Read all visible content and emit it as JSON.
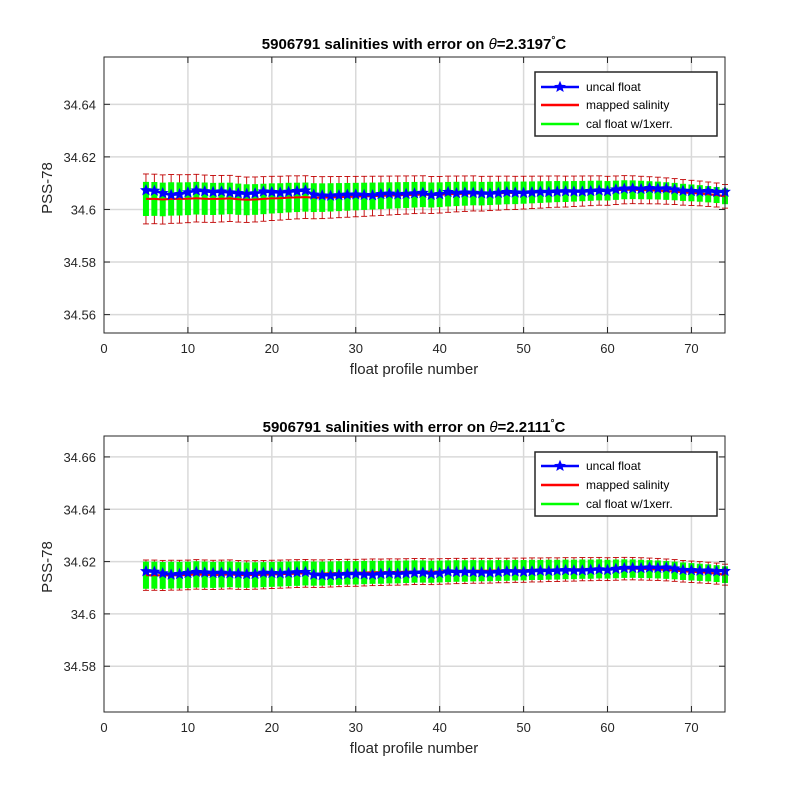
{
  "colors": {
    "uncal": "#0000ff",
    "mapped": "#ff0000",
    "errorbar": "#c00000",
    "cal": "#00ff00",
    "grid": "#d9d9d9",
    "axes": "#262626"
  },
  "chart_data": [
    {
      "type": "line",
      "title_prefix": "5906791 salinities with error on ",
      "theta_symbol": "θ",
      "title_value": "=2.3197",
      "degree_symbol": "°",
      "title_unit": "C",
      "xlabel": "float profile number",
      "ylabel": "PSS-78",
      "xlim": [
        0,
        74
      ],
      "ylim": [
        34.553,
        34.658
      ],
      "xticks": [
        0,
        10,
        20,
        30,
        40,
        50,
        60,
        70
      ],
      "yticks": [
        34.56,
        34.58,
        34.6,
        34.62,
        34.64
      ],
      "ytick_labels": [
        "34.56",
        "34.58",
        "34.6",
        "34.62",
        "34.64"
      ],
      "grid": true,
      "legend_position": "top-right",
      "x_start": 5,
      "x_end": 74,
      "series": [
        {
          "name": "uncal float",
          "values": [
            34.6073,
            34.6071,
            34.6062,
            34.6055,
            34.6058,
            34.6065,
            34.6072,
            34.6069,
            34.6066,
            34.6068,
            34.6064,
            34.6062,
            34.6059,
            34.6061,
            34.6068,
            34.6066,
            34.6064,
            34.6067,
            34.607,
            34.6072,
            34.6056,
            34.6053,
            34.6052,
            34.6054,
            34.6056,
            34.6057,
            34.6055,
            34.6054,
            34.6058,
            34.606,
            34.6057,
            34.6059,
            34.6061,
            34.6063,
            34.6055,
            34.6058,
            34.6066,
            34.6062,
            34.6064,
            34.6063,
            34.6061,
            34.606,
            34.6063,
            34.6066,
            34.6064,
            34.6063,
            34.6065,
            34.6067,
            34.6066,
            34.6068,
            34.6069,
            34.6068,
            34.6068,
            34.607,
            34.6072,
            34.607,
            34.6076,
            34.6079,
            34.608,
            34.6078,
            34.6081,
            34.6079,
            34.608,
            34.6076,
            34.6071,
            34.607,
            34.6068,
            34.607,
            34.6066,
            34.6067
          ]
        },
        {
          "name": "mapped salinity",
          "values": [
            34.604,
            34.604,
            34.6038,
            34.604,
            34.604,
            34.6041,
            34.6043,
            34.6041,
            34.604,
            34.6041,
            34.6042,
            34.6039,
            34.6037,
            34.6038,
            34.604,
            34.6042,
            34.6043,
            34.6045,
            34.6046,
            34.6047,
            34.6045,
            34.6045,
            34.6046,
            34.6047,
            34.6048,
            34.6049,
            34.605,
            34.6051,
            34.6052,
            34.6053,
            34.6054,
            34.6055,
            34.6056,
            34.6057,
            34.6055,
            34.6056,
            34.6058,
            34.6059,
            34.606,
            34.6061,
            34.606,
            34.6061,
            34.6062,
            34.6063,
            34.6063,
            34.6064,
            34.6065,
            34.6066,
            34.6067,
            34.6068,
            34.6068,
            34.6069,
            34.607,
            34.6071,
            34.6072,
            34.6071,
            34.6073,
            34.6075,
            34.6075,
            34.6074,
            34.6073,
            34.6072,
            34.607,
            34.6068,
            34.6065,
            34.6063,
            34.6061,
            34.6058,
            34.6055,
            34.605
          ]
        },
        {
          "name": "cal float w/1xerr.",
          "values": [
            34.604,
            34.604,
            34.6038,
            34.604,
            34.604,
            34.6041,
            34.6043,
            34.6041,
            34.604,
            34.6041,
            34.6042,
            34.6039,
            34.6037,
            34.6038,
            34.604,
            34.6042,
            34.6043,
            34.6045,
            34.6046,
            34.6047,
            34.6045,
            34.6045,
            34.6046,
            34.6047,
            34.6048,
            34.6049,
            34.605,
            34.6051,
            34.6052,
            34.6053,
            34.6054,
            34.6055,
            34.6056,
            34.6057,
            34.6055,
            34.6056,
            34.6058,
            34.6059,
            34.606,
            34.6061,
            34.606,
            34.6061,
            34.6062,
            34.6063,
            34.6063,
            34.6064,
            34.6065,
            34.6066,
            34.6067,
            34.6068,
            34.6068,
            34.6069,
            34.607,
            34.6071,
            34.6072,
            34.6071,
            34.6073,
            34.6075,
            34.6075,
            34.6074,
            34.6073,
            34.6072,
            34.607,
            34.6068,
            34.6065,
            34.6063,
            34.6061,
            34.6058,
            34.6055,
            34.605
          ]
        }
      ],
      "mapped_error": {
        "first": 0.0095,
        "last": 0.0045
      },
      "cal_error": {
        "first": 0.0065,
        "last": 0.003
      }
    },
    {
      "type": "line",
      "title_prefix": "5906791 salinities with error on ",
      "theta_symbol": "θ",
      "title_value": "=2.2111",
      "degree_symbol": "°",
      "title_unit": "C",
      "xlabel": "float profile number",
      "ylabel": "PSS-78",
      "xlim": [
        0,
        74
      ],
      "ylim": [
        34.5625,
        34.668
      ],
      "xticks": [
        0,
        10,
        20,
        30,
        40,
        50,
        60,
        70
      ],
      "yticks": [
        34.58,
        34.6,
        34.62,
        34.64,
        34.66
      ],
      "ytick_labels": [
        "34.58",
        "34.6",
        "34.62",
        "34.64",
        "34.66"
      ],
      "grid": true,
      "legend_position": "top-right",
      "x_start": 5,
      "x_end": 74,
      "series": [
        {
          "name": "uncal float",
          "values": [
            34.6163,
            34.6161,
            34.6155,
            34.615,
            34.6152,
            34.6156,
            34.616,
            34.6158,
            34.6156,
            34.6157,
            34.6155,
            34.6154,
            34.6152,
            34.6153,
            34.6157,
            34.6156,
            34.6155,
            34.6157,
            34.6159,
            34.616,
            34.615,
            34.6148,
            34.6148,
            34.615,
            34.6152,
            34.6153,
            34.6151,
            34.615,
            34.6153,
            34.6155,
            34.6153,
            34.6155,
            34.6157,
            34.6158,
            34.6153,
            34.6156,
            34.6162,
            34.616,
            34.6161,
            34.616,
            34.6159,
            34.6158,
            34.616,
            34.6163,
            34.6162,
            34.6161,
            34.6163,
            34.6165,
            34.6164,
            34.6166,
            34.6167,
            34.6166,
            34.6166,
            34.6168,
            34.617,
            34.6168,
            34.6172,
            34.6175,
            34.6176,
            34.6175,
            34.6177,
            34.6176,
            34.6177,
            34.6173,
            34.6168,
            34.6167,
            34.6165,
            34.6166,
            34.6163,
            34.6164
          ]
        },
        {
          "name": "mapped salinity",
          "values": [
            34.6148,
            34.6148,
            34.6147,
            34.6148,
            34.6148,
            34.6149,
            34.6151,
            34.615,
            34.6149,
            34.615,
            34.6151,
            34.6149,
            34.6148,
            34.6149,
            34.615,
            34.6151,
            34.6152,
            34.6153,
            34.6154,
            34.6155,
            34.6154,
            34.6154,
            34.6155,
            34.6156,
            34.6157,
            34.6157,
            34.6158,
            34.6159,
            34.6159,
            34.616,
            34.616,
            34.6161,
            34.6162,
            34.6162,
            34.6161,
            34.6162,
            34.6163,
            34.6164,
            34.6164,
            34.6165,
            34.6165,
            34.6165,
            34.6166,
            34.6166,
            34.6167,
            34.6167,
            34.6168,
            34.6168,
            34.6169,
            34.6169,
            34.617,
            34.617,
            34.6171,
            34.6171,
            34.6172,
            34.6171,
            34.6172,
            34.6173,
            34.6173,
            34.6172,
            34.6171,
            34.617,
            34.6168,
            34.6166,
            34.6163,
            34.6161,
            34.6159,
            34.6157,
            34.6154,
            34.615
          ]
        },
        {
          "name": "cal float w/1xerr.",
          "values": [
            34.6148,
            34.6148,
            34.6147,
            34.6148,
            34.6148,
            34.6149,
            34.6151,
            34.615,
            34.6149,
            34.615,
            34.6151,
            34.6149,
            34.6148,
            34.6149,
            34.615,
            34.6151,
            34.6152,
            34.6153,
            34.6154,
            34.6155,
            34.6154,
            34.6154,
            34.6155,
            34.6156,
            34.6157,
            34.6157,
            34.6158,
            34.6159,
            34.6159,
            34.616,
            34.616,
            34.6161,
            34.6162,
            34.6162,
            34.6161,
            34.6162,
            34.6163,
            34.6164,
            34.6164,
            34.6165,
            34.6165,
            34.6165,
            34.6166,
            34.6166,
            34.6167,
            34.6167,
            34.6168,
            34.6168,
            34.6169,
            34.6169,
            34.617,
            34.617,
            34.6171,
            34.6171,
            34.6172,
            34.6171,
            34.6172,
            34.6173,
            34.6173,
            34.6172,
            34.6171,
            34.617,
            34.6168,
            34.6166,
            34.6163,
            34.6161,
            34.6159,
            34.6157,
            34.6154,
            34.615
          ]
        }
      ],
      "mapped_error": {
        "first": 0.0058,
        "last": 0.004
      },
      "cal_error": {
        "first": 0.0052,
        "last": 0.0032
      }
    }
  ]
}
